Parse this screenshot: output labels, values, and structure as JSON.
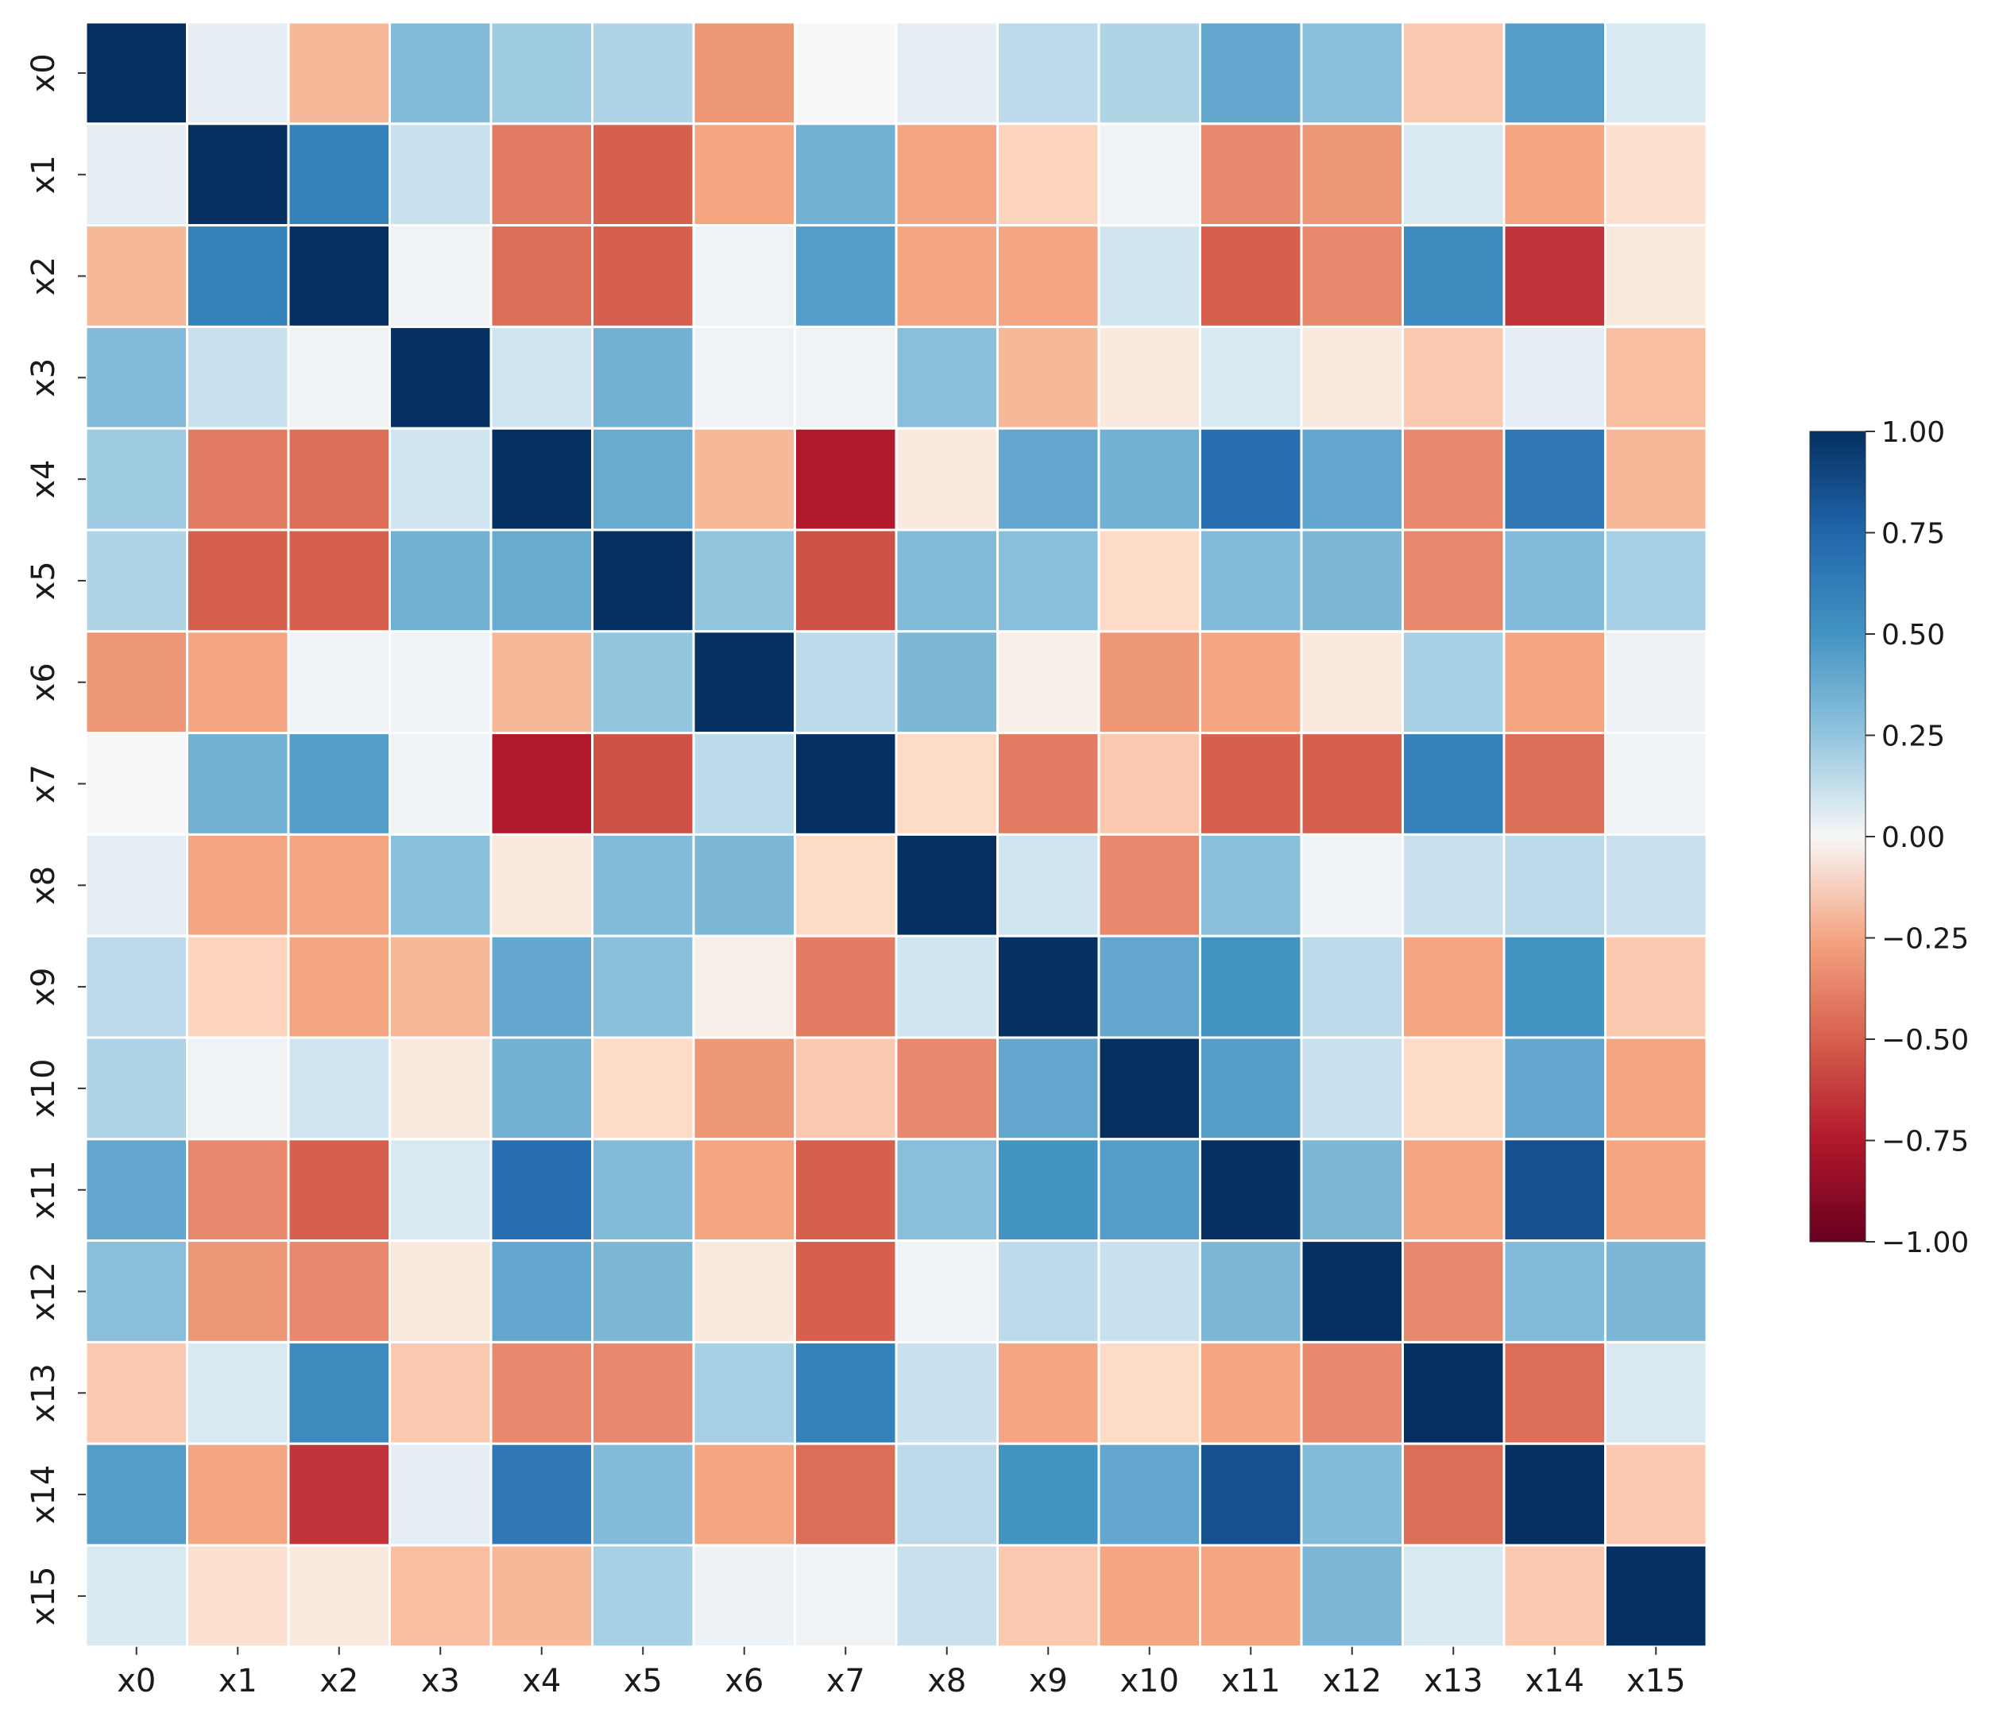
{
  "chart_data": {
    "type": "heatmap",
    "title": "",
    "xlabel": "",
    "ylabel": "",
    "x_labels": [
      "x0",
      "x1",
      "x2",
      "x3",
      "x4",
      "x5",
      "x6",
      "x7",
      "x8",
      "x9",
      "x10",
      "x11",
      "x12",
      "x13",
      "x14",
      "x15"
    ],
    "y_labels": [
      "x0",
      "x1",
      "x2",
      "x3",
      "x4",
      "x5",
      "x6",
      "x7",
      "x8",
      "x9",
      "x10",
      "x11",
      "x12",
      "x13",
      "x14",
      "x15"
    ],
    "values": [
      [
        1.0,
        0.05,
        -0.2,
        0.3,
        0.22,
        0.18,
        -0.3,
        0.0,
        0.05,
        0.15,
        0.18,
        0.4,
        0.28,
        -0.15,
        0.45,
        0.08
      ],
      [
        0.05,
        1.0,
        0.6,
        0.12,
        -0.4,
        -0.5,
        -0.25,
        0.35,
        -0.25,
        -0.12,
        0.02,
        -0.35,
        -0.3,
        0.08,
        -0.25,
        -0.08
      ],
      [
        -0.2,
        0.6,
        1.0,
        0.02,
        -0.45,
        -0.5,
        0.02,
        0.45,
        -0.25,
        -0.25,
        0.1,
        -0.5,
        -0.35,
        0.55,
        -0.65,
        -0.05
      ],
      [
        0.3,
        0.12,
        0.02,
        1.0,
        0.1,
        0.35,
        0.02,
        0.02,
        0.28,
        -0.2,
        -0.05,
        0.08,
        -0.05,
        -0.15,
        0.05,
        -0.18
      ],
      [
        0.22,
        -0.4,
        -0.45,
        0.1,
        1.0,
        0.38,
        -0.2,
        -0.75,
        -0.05,
        0.4,
        0.35,
        0.7,
        0.4,
        -0.35,
        0.65,
        -0.2
      ],
      [
        0.18,
        -0.5,
        -0.5,
        0.35,
        0.38,
        1.0,
        0.25,
        -0.55,
        0.3,
        0.28,
        -0.1,
        0.3,
        0.32,
        -0.35,
        0.3,
        0.2
      ],
      [
        -0.3,
        -0.25,
        0.02,
        0.02,
        -0.2,
        0.25,
        1.0,
        0.15,
        0.32,
        -0.03,
        -0.3,
        -0.25,
        -0.05,
        0.2,
        -0.25,
        0.03
      ],
      [
        0.0,
        0.35,
        0.45,
        0.02,
        -0.75,
        -0.55,
        0.15,
        1.0,
        -0.1,
        -0.4,
        -0.15,
        -0.5,
        -0.5,
        0.6,
        -0.45,
        0.02
      ],
      [
        0.05,
        -0.25,
        -0.25,
        0.28,
        -0.05,
        0.3,
        0.32,
        -0.1,
        1.0,
        0.1,
        -0.35,
        0.28,
        0.02,
        0.12,
        0.15,
        0.12
      ],
      [
        0.15,
        -0.12,
        -0.25,
        -0.2,
        0.4,
        0.28,
        -0.03,
        -0.4,
        0.1,
        1.0,
        0.4,
        0.5,
        0.15,
        -0.25,
        0.5,
        -0.15
      ],
      [
        0.18,
        0.02,
        0.1,
        -0.05,
        0.35,
        -0.1,
        -0.3,
        -0.15,
        -0.35,
        0.4,
        1.0,
        0.45,
        0.12,
        -0.1,
        0.4,
        -0.25
      ],
      [
        0.4,
        -0.35,
        -0.5,
        0.08,
        0.7,
        0.3,
        -0.25,
        -0.5,
        0.28,
        0.5,
        0.45,
        1.0,
        0.32,
        -0.25,
        0.85,
        -0.25
      ],
      [
        0.28,
        -0.3,
        -0.35,
        -0.05,
        0.4,
        0.32,
        -0.05,
        -0.5,
        0.02,
        0.15,
        0.12,
        0.32,
        1.0,
        -0.35,
        0.3,
        0.32
      ],
      [
        -0.15,
        0.08,
        0.55,
        -0.15,
        -0.35,
        -0.35,
        0.2,
        0.6,
        0.12,
        -0.25,
        -0.1,
        -0.25,
        -0.35,
        1.0,
        -0.45,
        0.08
      ],
      [
        0.45,
        -0.25,
        -0.65,
        0.05,
        0.65,
        0.3,
        -0.25,
        -0.45,
        0.15,
        0.5,
        0.4,
        0.85,
        0.3,
        -0.45,
        1.0,
        -0.15
      ],
      [
        0.08,
        -0.08,
        -0.05,
        -0.18,
        -0.2,
        0.2,
        0.03,
        0.02,
        0.12,
        -0.15,
        -0.25,
        -0.25,
        0.32,
        0.08,
        -0.15,
        1.0
      ]
    ],
    "vmin": -1.0,
    "vmax": 1.0,
    "colormap": "RdBu",
    "colorbar": {
      "ticks": [
        1.0,
        0.75,
        0.5,
        0.25,
        0.0,
        -0.25,
        -0.5,
        -0.75,
        -1.0
      ],
      "tick_labels": [
        "1.00",
        "0.75",
        "0.50",
        "0.25",
        "0.00",
        "−0.25",
        "−0.50",
        "−0.75",
        "−1.00"
      ],
      "placement": "right"
    },
    "grid": false
  }
}
